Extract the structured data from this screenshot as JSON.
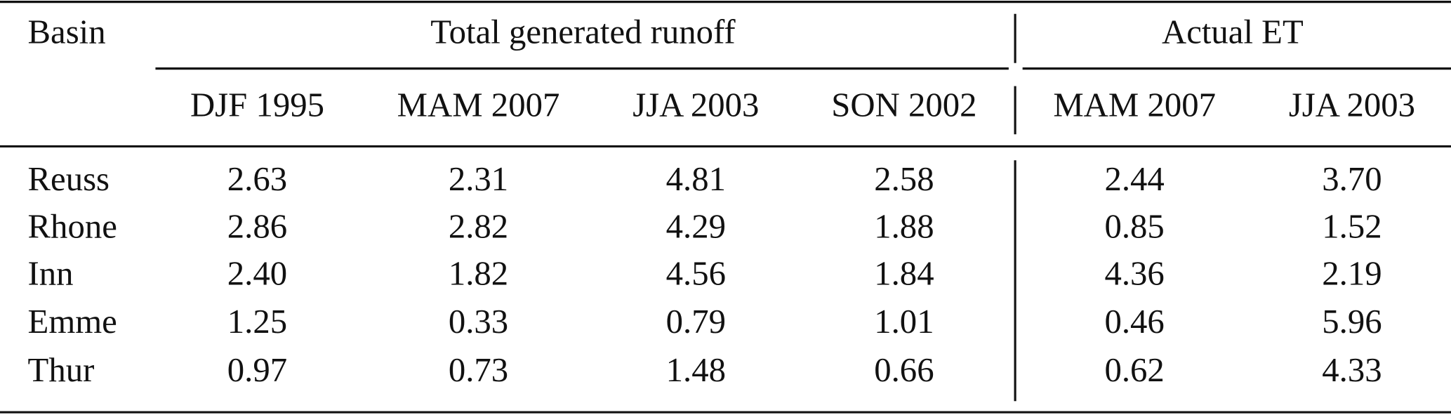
{
  "table": {
    "header": {
      "stub": "Basin",
      "groups": [
        "Total generated runoff",
        "Actual ET"
      ],
      "columns": [
        "DJF 1995",
        "MAM 2007",
        "JJA 2003",
        "SON 2002",
        "MAM 2007",
        "JJA 2003"
      ]
    },
    "rows": [
      [
        "Reuss",
        "2.63",
        "2.31",
        "4.81",
        "2.58",
        "2.44",
        "3.70"
      ],
      [
        "Rhone",
        "2.86",
        "2.82",
        "4.29",
        "1.88",
        "0.85",
        "1.52"
      ],
      [
        "Inn",
        "2.40",
        "1.82",
        "4.56",
        "1.84",
        "4.36",
        "2.19"
      ],
      [
        "Emme",
        "1.25",
        "0.33",
        "0.79",
        "1.01",
        "0.46",
        "5.96"
      ],
      [
        "Thur",
        "0.97",
        "0.73",
        "1.48",
        "0.66",
        "0.62",
        "4.33"
      ]
    ]
  }
}
